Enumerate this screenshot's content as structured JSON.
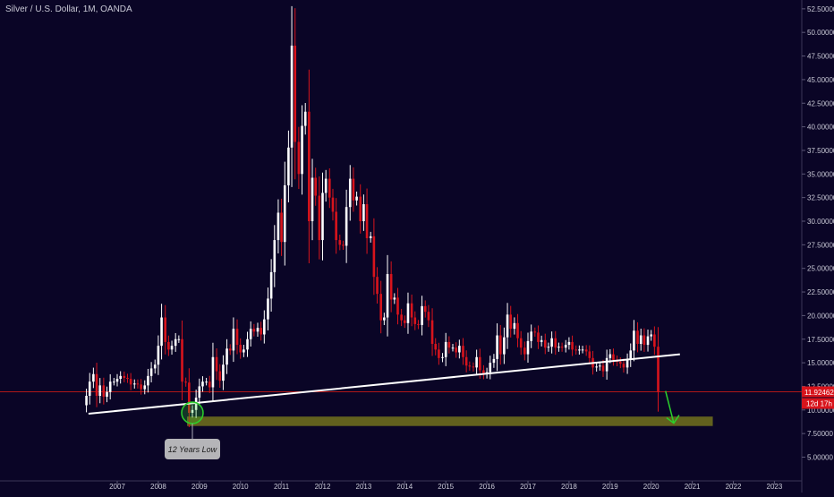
{
  "header": {
    "symbol_title": "Silver / U.S. Dollar, 1M, OANDA"
  },
  "price_scale": {
    "current_price_label": "11.92462",
    "countdown_label": "12d 17h"
  },
  "annotation": {
    "low_label": "12 Years Low"
  },
  "colors": {
    "background": "#0a0526",
    "up_candle": "#ffffff",
    "down_candle": "#d8141c",
    "trendline": "#ffffff",
    "support_zone": "#6b6b1e",
    "highlight_circle": "#2bd12b",
    "forecast_arrow": "#2bd12b",
    "price_line": "#b01818",
    "axis_text": "#c9c9d6"
  },
  "chart_data": {
    "type": "candlestick",
    "title": "Silver / U.S. Dollar, 1M, OANDA",
    "x_ticks": [
      "2007",
      "2008",
      "2009",
      "2010",
      "2011",
      "2012",
      "2013",
      "2014",
      "2015",
      "2016",
      "2017",
      "2018",
      "2019",
      "2020",
      "2021",
      "2022",
      "2023"
    ],
    "y_ticks": [
      "5.00000",
      "7.50000",
      "10.00000",
      "12.50000",
      "15.00000",
      "17.50000",
      "20.00000",
      "22.50000",
      "25.00000",
      "27.50000",
      "30.00000",
      "32.50000",
      "35.00000",
      "37.50000",
      "40.00000",
      "42.50000",
      "45.00000",
      "47.50000",
      "50.00000",
      "52.50000"
    ],
    "y_tick_values": [
      5,
      7.5,
      10,
      12.5,
      15,
      17.5,
      20,
      22.5,
      25,
      27.5,
      30,
      32.5,
      35,
      37.5,
      40,
      42.5,
      45,
      47.5,
      50,
      52.5
    ],
    "x_range": [
      2006.0,
      2023.5
    ],
    "y_range": [
      3.5,
      53.5
    ],
    "current_price": 11.92462,
    "closes": [
      [
        2006.25,
        11.5
      ],
      [
        2006.33,
        13.0
      ],
      [
        2006.42,
        13.8
      ],
      [
        2006.5,
        11.5
      ],
      [
        2006.58,
        12.6
      ],
      [
        2006.67,
        11.4
      ],
      [
        2006.75,
        11.9
      ],
      [
        2006.83,
        13.0
      ],
      [
        2006.92,
        13.0
      ],
      [
        2007.0,
        13.3
      ],
      [
        2007.08,
        13.6
      ],
      [
        2007.17,
        13.4
      ],
      [
        2007.25,
        13.3
      ],
      [
        2007.33,
        12.7
      ],
      [
        2007.42,
        12.8
      ],
      [
        2007.5,
        12.7
      ],
      [
        2007.58,
        12.2
      ],
      [
        2007.67,
        12.6
      ],
      [
        2007.75,
        13.6
      ],
      [
        2007.83,
        14.4
      ],
      [
        2007.92,
        14.8
      ],
      [
        2008.0,
        16.8
      ],
      [
        2008.08,
        19.8
      ],
      [
        2008.17,
        17.2
      ],
      [
        2008.25,
        16.4
      ],
      [
        2008.33,
        16.8
      ],
      [
        2008.42,
        17.5
      ],
      [
        2008.5,
        17.5
      ],
      [
        2008.58,
        13.0
      ],
      [
        2008.67,
        12.9
      ],
      [
        2008.75,
        9.7
      ],
      [
        2008.83,
        10.0
      ],
      [
        2008.92,
        11.3
      ],
      [
        2009.0,
        12.5
      ],
      [
        2009.08,
        13.0
      ],
      [
        2009.17,
        13.0
      ],
      [
        2009.25,
        12.4
      ],
      [
        2009.33,
        15.6
      ],
      [
        2009.42,
        14.1
      ],
      [
        2009.5,
        13.1
      ],
      [
        2009.58,
        14.8
      ],
      [
        2009.67,
        16.5
      ],
      [
        2009.75,
        16.3
      ],
      [
        2009.83,
        18.6
      ],
      [
        2009.92,
        16.9
      ],
      [
        2010.0,
        16.1
      ],
      [
        2010.08,
        16.4
      ],
      [
        2010.17,
        17.5
      ],
      [
        2010.25,
        18.6
      ],
      [
        2010.33,
        18.3
      ],
      [
        2010.42,
        18.7
      ],
      [
        2010.5,
        18.0
      ],
      [
        2010.58,
        19.6
      ],
      [
        2010.67,
        21.8
      ],
      [
        2010.75,
        24.6
      ],
      [
        2010.83,
        28.0
      ],
      [
        2010.92,
        30.9
      ],
      [
        2011.0,
        27.8
      ],
      [
        2011.08,
        33.8
      ],
      [
        2011.17,
        37.8
      ],
      [
        2011.25,
        48.6
      ],
      [
        2011.33,
        38.4
      ],
      [
        2011.42,
        35.0
      ],
      [
        2011.5,
        40.1
      ],
      [
        2011.58,
        41.6
      ],
      [
        2011.67,
        30.0
      ],
      [
        2011.75,
        34.6
      ],
      [
        2011.83,
        32.7
      ],
      [
        2011.92,
        28.0
      ],
      [
        2012.0,
        33.0
      ],
      [
        2012.08,
        34.5
      ],
      [
        2012.17,
        32.5
      ],
      [
        2012.25,
        31.0
      ],
      [
        2012.33,
        28.0
      ],
      [
        2012.42,
        27.5
      ],
      [
        2012.5,
        27.4
      ],
      [
        2012.58,
        31.5
      ],
      [
        2012.67,
        34.5
      ],
      [
        2012.75,
        32.2
      ],
      [
        2012.83,
        32.6
      ],
      [
        2012.92,
        30.0
      ],
      [
        2013.0,
        31.8
      ],
      [
        2013.08,
        28.2
      ],
      [
        2013.17,
        28.4
      ],
      [
        2013.25,
        24.1
      ],
      [
        2013.33,
        22.3
      ],
      [
        2013.42,
        19.5
      ],
      [
        2013.5,
        19.8
      ],
      [
        2013.58,
        24.4
      ],
      [
        2013.67,
        21.7
      ],
      [
        2013.75,
        21.9
      ],
      [
        2013.83,
        20.1
      ],
      [
        2013.92,
        19.5
      ],
      [
        2014.0,
        19.2
      ],
      [
        2014.08,
        21.3
      ],
      [
        2014.17,
        19.8
      ],
      [
        2014.25,
        19.1
      ],
      [
        2014.33,
        19.0
      ],
      [
        2014.42,
        21.0
      ],
      [
        2014.5,
        20.4
      ],
      [
        2014.58,
        19.5
      ],
      [
        2014.67,
        17.0
      ],
      [
        2014.75,
        16.4
      ],
      [
        2014.83,
        15.5
      ],
      [
        2014.92,
        15.6
      ],
      [
        2015.0,
        17.2
      ],
      [
        2015.08,
        16.6
      ],
      [
        2015.17,
        16.6
      ],
      [
        2015.25,
        16.1
      ],
      [
        2015.33,
        16.8
      ],
      [
        2015.42,
        15.6
      ],
      [
        2015.5,
        14.7
      ],
      [
        2015.58,
        14.6
      ],
      [
        2015.67,
        14.5
      ],
      [
        2015.75,
        15.6
      ],
      [
        2015.83,
        14.2
      ],
      [
        2015.92,
        13.8
      ],
      [
        2016.0,
        14.0
      ],
      [
        2016.08,
        15.0
      ],
      [
        2016.17,
        15.4
      ],
      [
        2016.25,
        17.9
      ],
      [
        2016.33,
        15.9
      ],
      [
        2016.42,
        17.7
      ],
      [
        2016.5,
        20.1
      ],
      [
        2016.58,
        18.6
      ],
      [
        2016.67,
        19.2
      ],
      [
        2016.75,
        17.6
      ],
      [
        2016.83,
        16.6
      ],
      [
        2016.92,
        15.9
      ],
      [
        2017.0,
        17.3
      ],
      [
        2017.08,
        18.3
      ],
      [
        2017.17,
        18.2
      ],
      [
        2017.25,
        17.2
      ],
      [
        2017.33,
        17.4
      ],
      [
        2017.42,
        16.6
      ],
      [
        2017.5,
        16.7
      ],
      [
        2017.58,
        17.6
      ],
      [
        2017.67,
        16.6
      ],
      [
        2017.75,
        16.7
      ],
      [
        2017.83,
        16.6
      ],
      [
        2017.92,
        16.9
      ],
      [
        2018.0,
        17.2
      ],
      [
        2018.08,
        16.4
      ],
      [
        2018.17,
        16.3
      ],
      [
        2018.25,
        16.4
      ],
      [
        2018.33,
        16.4
      ],
      [
        2018.42,
        16.2
      ],
      [
        2018.5,
        15.5
      ],
      [
        2018.58,
        14.5
      ],
      [
        2018.67,
        14.6
      ],
      [
        2018.75,
        14.7
      ],
      [
        2018.83,
        14.1
      ],
      [
        2018.92,
        15.5
      ],
      [
        2019.0,
        15.9
      ],
      [
        2019.08,
        15.3
      ],
      [
        2019.17,
        15.1
      ],
      [
        2019.25,
        14.9
      ],
      [
        2019.33,
        14.5
      ],
      [
        2019.42,
        15.3
      ],
      [
        2019.5,
        16.3
      ],
      [
        2019.58,
        18.4
      ],
      [
        2019.67,
        17.0
      ],
      [
        2019.75,
        17.9
      ],
      [
        2019.83,
        16.9
      ],
      [
        2019.92,
        17.8
      ],
      [
        2020.0,
        18.0
      ],
      [
        2020.08,
        16.7
      ],
      [
        2020.17,
        11.9
      ]
    ],
    "trendline": {
      "from": [
        2006.3,
        9.6
      ],
      "to": [
        2020.7,
        15.9
      ]
    },
    "support_zone": {
      "x": [
        2008.7,
        2021.5
      ],
      "y": [
        8.3,
        9.3
      ]
    },
    "forecast_arrow": {
      "from": [
        2020.35,
        12.0
      ],
      "to": [
        2020.55,
        8.6
      ]
    }
  }
}
